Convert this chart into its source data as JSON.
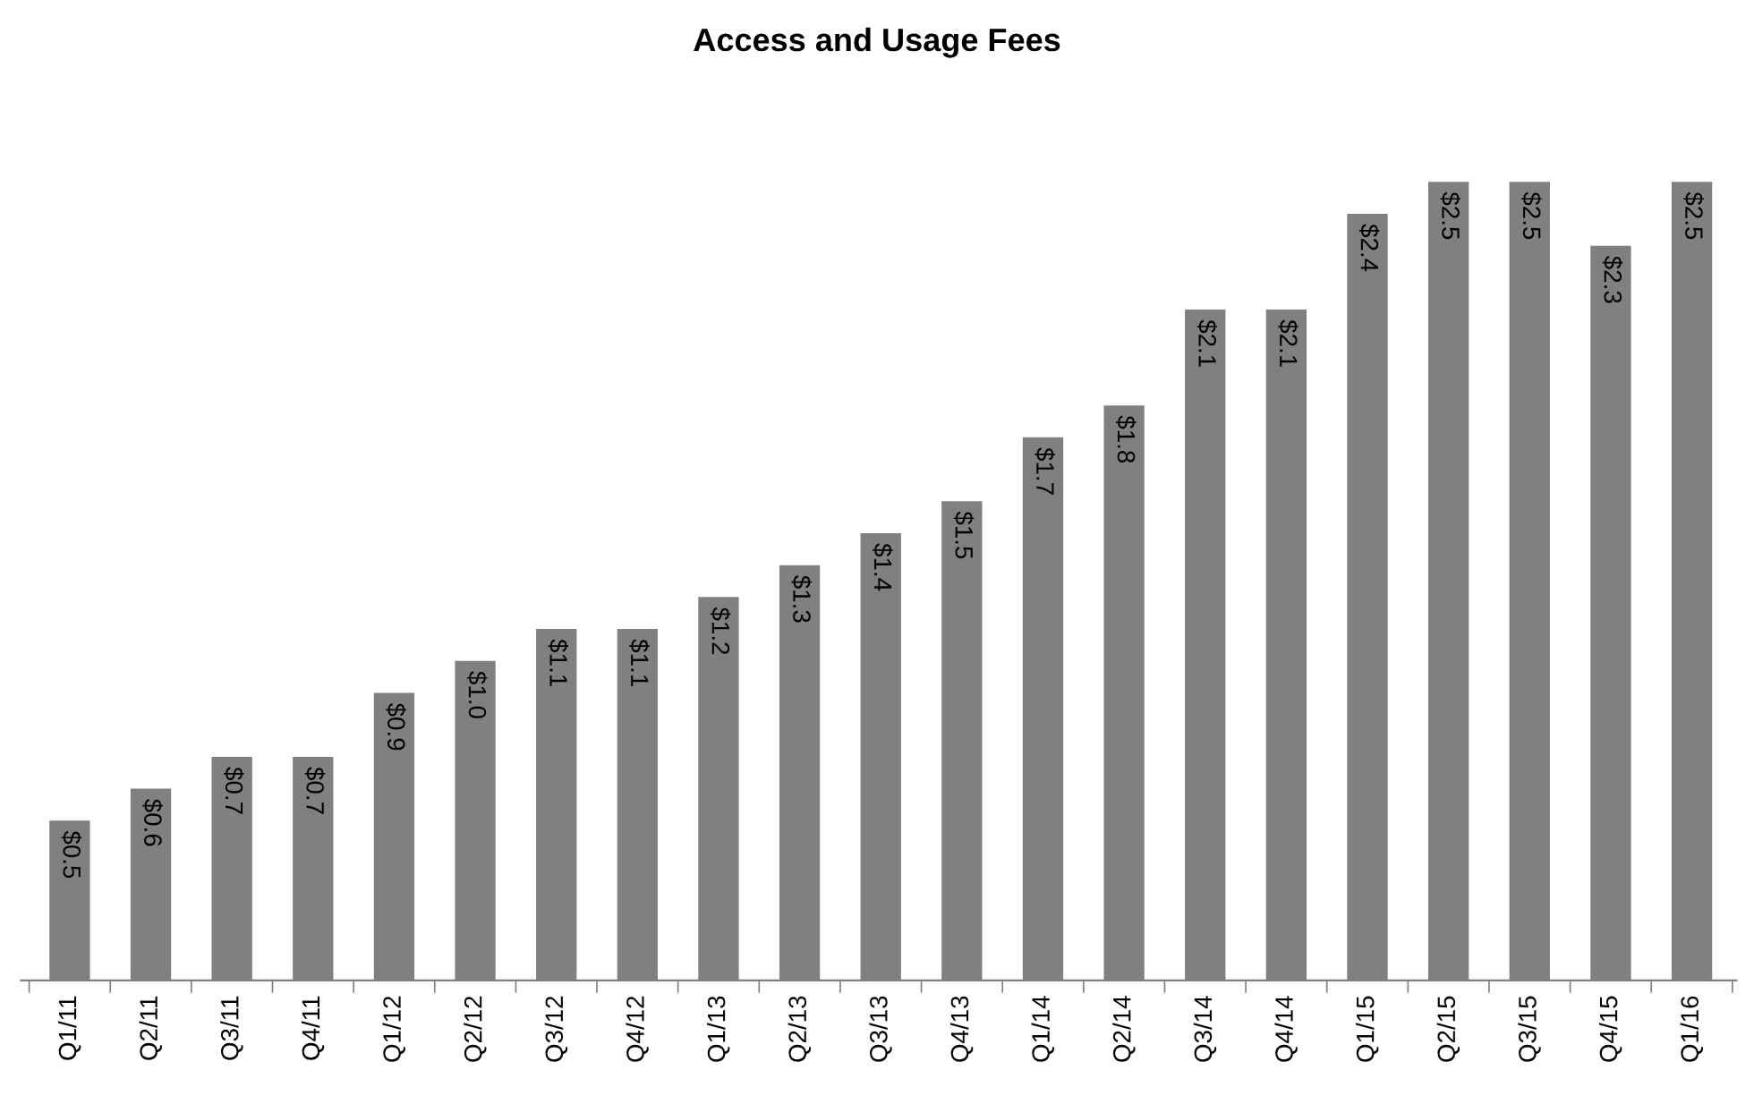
{
  "chart_data": {
    "type": "bar",
    "title": "Access and Usage Fees",
    "categories": [
      "Q1/11",
      "Q2/11",
      "Q3/11",
      "Q4/11",
      "Q1/12",
      "Q2/12",
      "Q3/12",
      "Q4/12",
      "Q1/13",
      "Q2/13",
      "Q3/13",
      "Q4/13",
      "Q1/14",
      "Q2/14",
      "Q3/14",
      "Q4/14",
      "Q1/15",
      "Q2/15",
      "Q3/15",
      "Q4/15",
      "Q1/16"
    ],
    "values": [
      0.5,
      0.6,
      0.7,
      0.7,
      0.9,
      1.0,
      1.1,
      1.1,
      1.2,
      1.3,
      1.4,
      1.5,
      1.7,
      1.8,
      2.1,
      2.1,
      2.4,
      2.5,
      2.5,
      2.3,
      2.5
    ],
    "value_labels": [
      "$0.5",
      "$0.6",
      "$0.7",
      "$0.7",
      "$0.9",
      "$1.0",
      "$1.1",
      "$1.1",
      "$1.2",
      "$1.3",
      "$1.4",
      "$1.5",
      "$1.7",
      "$1.8",
      "$2.1",
      "$2.1",
      "$2.4",
      "$2.5",
      "$2.5",
      "$2.3",
      "$2.5"
    ],
    "color": "#808080",
    "grid": false,
    "legend": false
  }
}
